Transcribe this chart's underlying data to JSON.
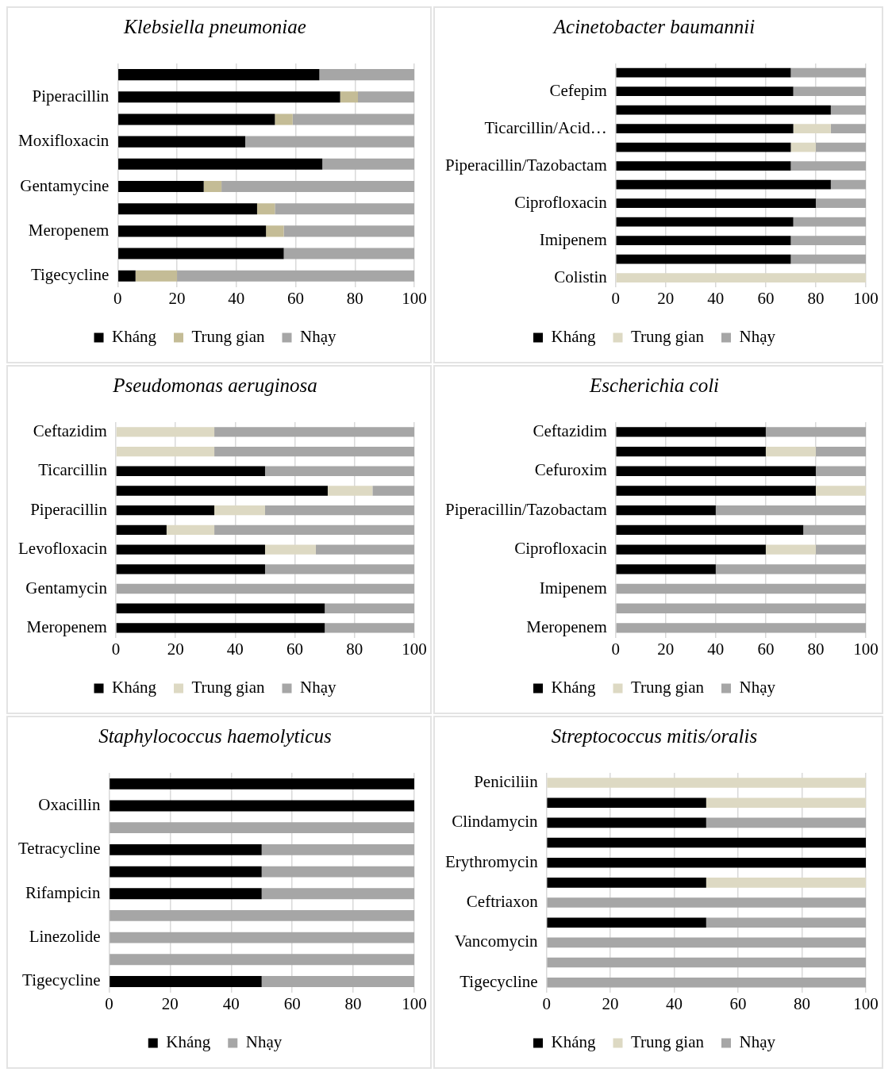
{
  "chart_data": [
    {
      "type": "bar",
      "orientation": "horizontal",
      "stacked": true,
      "title": "Klebsiella pneumoniae",
      "categories": [
        null,
        "Piperacillin",
        null,
        "Moxifloxacin",
        null,
        "Gentamycine",
        null,
        "Meropenem",
        null,
        "Tigecycline"
      ],
      "xlim": [
        0,
        100
      ],
      "xticks": [
        0,
        20,
        40,
        60,
        80,
        100
      ],
      "grid": "x",
      "legend": "bottom",
      "series": [
        {
          "name": "Kháng",
          "color": "#000000",
          "values": [
            68,
            75,
            53,
            43,
            69,
            29,
            47,
            50,
            56,
            6
          ]
        },
        {
          "name": "Trung gian",
          "color": "#c4bc96",
          "values": [
            0,
            6,
            6,
            0,
            0,
            6,
            6,
            6,
            0,
            14
          ]
        },
        {
          "name": "Nhạy",
          "color": "#a6a6a6",
          "values": [
            32,
            19,
            41,
            57,
            31,
            65,
            47,
            44,
            44,
            80
          ]
        }
      ]
    },
    {
      "type": "bar",
      "orientation": "horizontal",
      "stacked": true,
      "title": "Acinetobacter baumannii",
      "categories": [
        null,
        "Cefepim",
        null,
        "Ticarcillin/Acid…",
        null,
        "Piperacillin/Tazobactam",
        null,
        "Ciprofloxacin",
        null,
        "Imipenem",
        null,
        "Colistin"
      ],
      "xlim": [
        0,
        100
      ],
      "xticks": [
        0,
        20,
        40,
        60,
        80,
        100
      ],
      "grid": "x",
      "legend": "bottom",
      "series": [
        {
          "name": "Kháng",
          "color": "#000000",
          "values": [
            70,
            71,
            86,
            71,
            70,
            70,
            86,
            80,
            71,
            70,
            70,
            0
          ]
        },
        {
          "name": "Trung gian",
          "color": "#ddd9c3",
          "values": [
            0,
            0,
            0,
            15,
            10,
            0,
            0,
            0,
            0,
            0,
            0,
            100
          ]
        },
        {
          "name": "Nhạy",
          "color": "#a6a6a6",
          "values": [
            30,
            29,
            14,
            14,
            20,
            30,
            14,
            20,
            29,
            30,
            30,
            0
          ]
        }
      ]
    },
    {
      "type": "bar",
      "orientation": "horizontal",
      "stacked": true,
      "title": "Pseudomonas aeruginosa",
      "categories": [
        "Ceftazidim",
        null,
        "Ticarcillin",
        null,
        "Piperacillin",
        null,
        "Levofloxacin",
        null,
        "Gentamycin",
        null,
        "Meropenem"
      ],
      "xlim": [
        0,
        100
      ],
      "xticks": [
        0,
        20,
        40,
        60,
        80,
        100
      ],
      "grid": "x",
      "legend": "bottom",
      "series": [
        {
          "name": "Kháng",
          "color": "#000000",
          "values": [
            0,
            0,
            50,
            71,
            33,
            17,
            50,
            50,
            0,
            70,
            70
          ]
        },
        {
          "name": "Trung gian",
          "color": "#ddd9c3",
          "values": [
            33,
            33,
            0,
            15,
            17,
            16,
            17,
            0,
            0,
            0,
            0
          ]
        },
        {
          "name": "Nhạy",
          "color": "#a6a6a6",
          "values": [
            67,
            67,
            50,
            14,
            50,
            67,
            33,
            50,
            100,
            30,
            30
          ]
        }
      ]
    },
    {
      "type": "bar",
      "orientation": "horizontal",
      "stacked": true,
      "title": "Escherichia coli",
      "categories": [
        "Ceftazidim",
        null,
        "Cefuroxim",
        null,
        "Piperacillin/Tazobactam",
        null,
        "Ciprofloxacin",
        null,
        "Imipenem",
        null,
        "Meropenem"
      ],
      "xlim": [
        0,
        100
      ],
      "xticks": [
        0,
        20,
        40,
        60,
        80,
        100
      ],
      "grid": "x",
      "legend": "bottom",
      "series": [
        {
          "name": "Kháng",
          "color": "#000000",
          "values": [
            60,
            60,
            80,
            80,
            40,
            75,
            60,
            40,
            0,
            0,
            0
          ]
        },
        {
          "name": "Trung gian",
          "color": "#ddd9c3",
          "values": [
            0,
            20,
            0,
            20,
            0,
            0,
            20,
            0,
            0,
            0,
            0
          ]
        },
        {
          "name": "Nhạy",
          "color": "#a6a6a6",
          "values": [
            40,
            20,
            20,
            0,
            60,
            25,
            20,
            60,
            100,
            100,
            100
          ]
        }
      ]
    },
    {
      "type": "bar",
      "orientation": "horizontal",
      "stacked": true,
      "title": "Staphylococcus haemolyticus",
      "categories": [
        null,
        "Oxacillin",
        null,
        "Tetracycline",
        null,
        "Rifampicin",
        null,
        "Linezolide",
        null,
        "Tigecycline"
      ],
      "xlim": [
        0,
        100
      ],
      "xticks": [
        0,
        20,
        40,
        60,
        80,
        100
      ],
      "grid": "x",
      "legend": "bottom",
      "series": [
        {
          "name": "Kháng",
          "color": "#000000",
          "values": [
            100,
            100,
            0,
            50,
            50,
            50,
            0,
            0,
            0,
            50
          ]
        },
        {
          "name": "Nhạy",
          "color": "#a6a6a6",
          "values": [
            0,
            0,
            100,
            50,
            50,
            50,
            100,
            100,
            100,
            50
          ]
        }
      ]
    },
    {
      "type": "bar",
      "orientation": "horizontal",
      "stacked": true,
      "title": "Streptococcus mitis/oralis",
      "categories": [
        "Peniciliin",
        null,
        "Clindamycin",
        null,
        "Erythromycin",
        null,
        "Ceftriaxon",
        null,
        "Vancomycin",
        null,
        "Tigecycline"
      ],
      "xlim": [
        0,
        100
      ],
      "xticks": [
        0,
        20,
        40,
        60,
        80,
        100
      ],
      "grid": "x",
      "legend": "bottom",
      "series": [
        {
          "name": "Kháng",
          "color": "#000000",
          "values": [
            0,
            50,
            50,
            100,
            100,
            50,
            0,
            50,
            0,
            0,
            0
          ]
        },
        {
          "name": "Trung gian",
          "color": "#ddd9c3",
          "values": [
            100,
            50,
            0,
            0,
            0,
            50,
            0,
            0,
            0,
            0,
            0
          ]
        },
        {
          "name": "Nhạy",
          "color": "#a6a6a6",
          "values": [
            0,
            0,
            50,
            0,
            0,
            0,
            100,
            50,
            100,
            100,
            100
          ]
        }
      ]
    }
  ]
}
